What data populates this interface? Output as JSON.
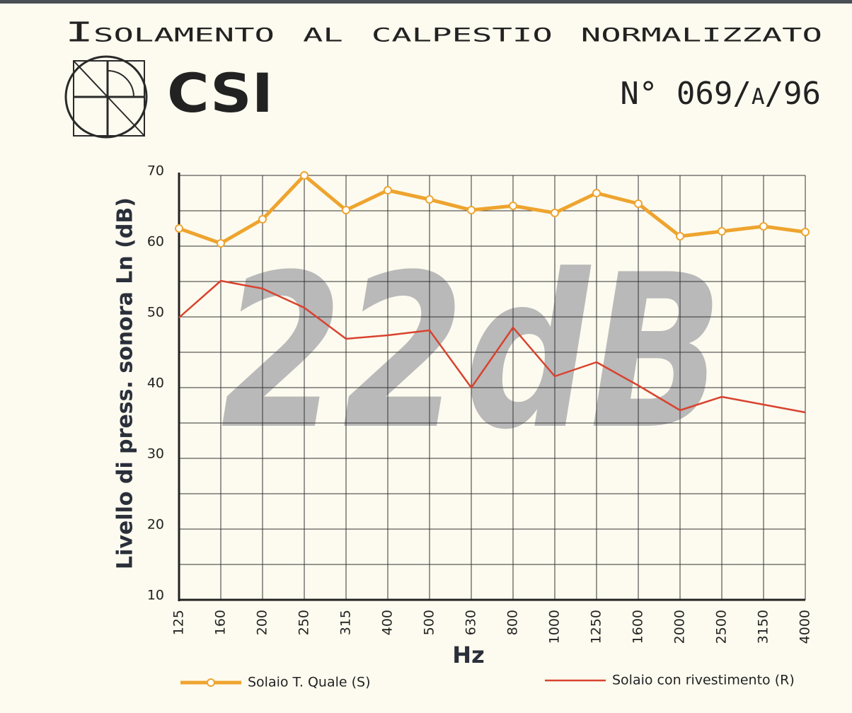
{
  "header": {
    "logo": "CSI",
    "number": "N° 069/a/96"
  },
  "chart_data": {
    "type": "line",
    "title": "Isolamento al calpestio normalizzato",
    "annotation": "22dB",
    "x_label": "Hz",
    "y_label": "Livello di press. sonora Ln (dB)",
    "categories": [
      "125",
      "160",
      "200",
      "250",
      "315",
      "400",
      "500",
      "630",
      "800",
      "1000",
      "1250",
      "1600",
      "2000",
      "2500",
      "3150",
      "4000"
    ],
    "series": [
      {
        "name": "Solaio T. Quale (S)",
        "color": "#eea42f",
        "marker": "circle",
        "values": [
          62.5,
          60.4,
          63.8,
          70,
          65.1,
          67.9,
          66.6,
          65.1,
          65.7,
          64.7,
          67.5,
          66,
          61.4,
          62.1,
          62.8,
          62
        ]
      },
      {
        "name": "Solaio con rivestimento (R)",
        "color": "#d8432f",
        "marker": "none",
        "values": [
          49.9,
          55.1,
          54,
          51.3,
          46.9,
          47.4,
          48.1,
          40,
          48.5,
          41.6,
          43.6,
          40.3,
          36.8,
          38.7,
          37.6,
          36.5
        ]
      }
    ],
    "ylim": [
      10,
      70
    ],
    "yticks": [
      10,
      20,
      30,
      40,
      50,
      60,
      70
    ],
    "minor_yticks": [
      15,
      25,
      35,
      45,
      55,
      65
    ],
    "grid": true
  }
}
